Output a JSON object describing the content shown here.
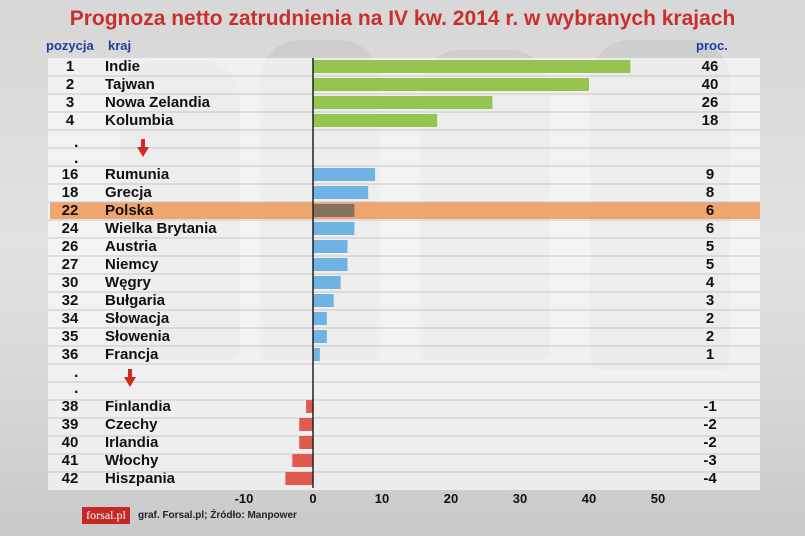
{
  "chart_data": {
    "type": "bar",
    "orientation": "horizontal",
    "title": "Prognoza netto zatrudnienia na IV kw. 2014 r. w wybranych krajach",
    "header_rank": "pozycja",
    "header_country": "kraj",
    "header_value": "proc.",
    "xlim": [
      -10,
      50
    ],
    "xticks": [
      "-10",
      "0",
      "10",
      "20",
      "30",
      "40",
      "50"
    ],
    "grid": true,
    "highlight": "Polska",
    "colors": {
      "top": "#95c451",
      "middle": "#6eb3e4",
      "bottom": "#e05a4f",
      "highlight_bar": "#84725f",
      "highlight_row": "#f0a46e"
    },
    "rows": [
      {
        "rank": "1",
        "country": "Indie",
        "value": 46,
        "label": "46",
        "group": "top"
      },
      {
        "rank": "2",
        "country": "Tajwan",
        "value": 40,
        "label": "40",
        "group": "top"
      },
      {
        "rank": "3",
        "country": "Nowa Zelandia",
        "value": 26,
        "label": "26",
        "group": "top"
      },
      {
        "rank": "4",
        "country": "Kolumbia",
        "value": 18,
        "label": "18",
        "group": "top"
      },
      {
        "rank": "16",
        "country": "Rumunia",
        "value": 9,
        "label": "9",
        "group": "middle"
      },
      {
        "rank": "18",
        "country": "Grecja",
        "value": 8,
        "label": "8",
        "group": "middle"
      },
      {
        "rank": "22",
        "country": "Polska",
        "value": 6,
        "label": "6",
        "group": "middle"
      },
      {
        "rank": "24",
        "country": "Wielka Brytania",
        "value": 6,
        "label": "6",
        "group": "middle"
      },
      {
        "rank": "26",
        "country": "Austria",
        "value": 5,
        "label": "5",
        "group": "middle"
      },
      {
        "rank": "27",
        "country": "Niemcy",
        "value": 5,
        "label": "5",
        "group": "middle"
      },
      {
        "rank": "30",
        "country": "Węgry",
        "value": 4,
        "label": "4",
        "group": "middle"
      },
      {
        "rank": "32",
        "country": "Bułgaria",
        "value": 3,
        "label": "3",
        "group": "middle"
      },
      {
        "rank": "34",
        "country": "Słowacja",
        "value": 2,
        "label": "2",
        "group": "middle"
      },
      {
        "rank": "35",
        "country": "Słowenia",
        "value": 2,
        "label": "2",
        "group": "middle"
      },
      {
        "rank": "36",
        "country": "Francja",
        "value": 1,
        "label": "1",
        "group": "middle"
      },
      {
        "rank": "38",
        "country": "Finlandia",
        "value": -1,
        "label": "-1",
        "group": "bottom"
      },
      {
        "rank": "39",
        "country": "Czechy",
        "value": -2,
        "label": "-2",
        "group": "bottom"
      },
      {
        "rank": "40",
        "country": "Irlandia",
        "value": -2,
        "label": "-2",
        "group": "bottom"
      },
      {
        "rank": "41",
        "country": "Włochy",
        "value": -3,
        "label": "-3",
        "group": "bottom"
      },
      {
        "rank": "42",
        "country": "Hiszpania",
        "value": -4,
        "label": "-4",
        "group": "bottom"
      }
    ],
    "logo": "forsal.pl",
    "source": "graf. Forsal.pl;  Źródło: Manpower"
  }
}
